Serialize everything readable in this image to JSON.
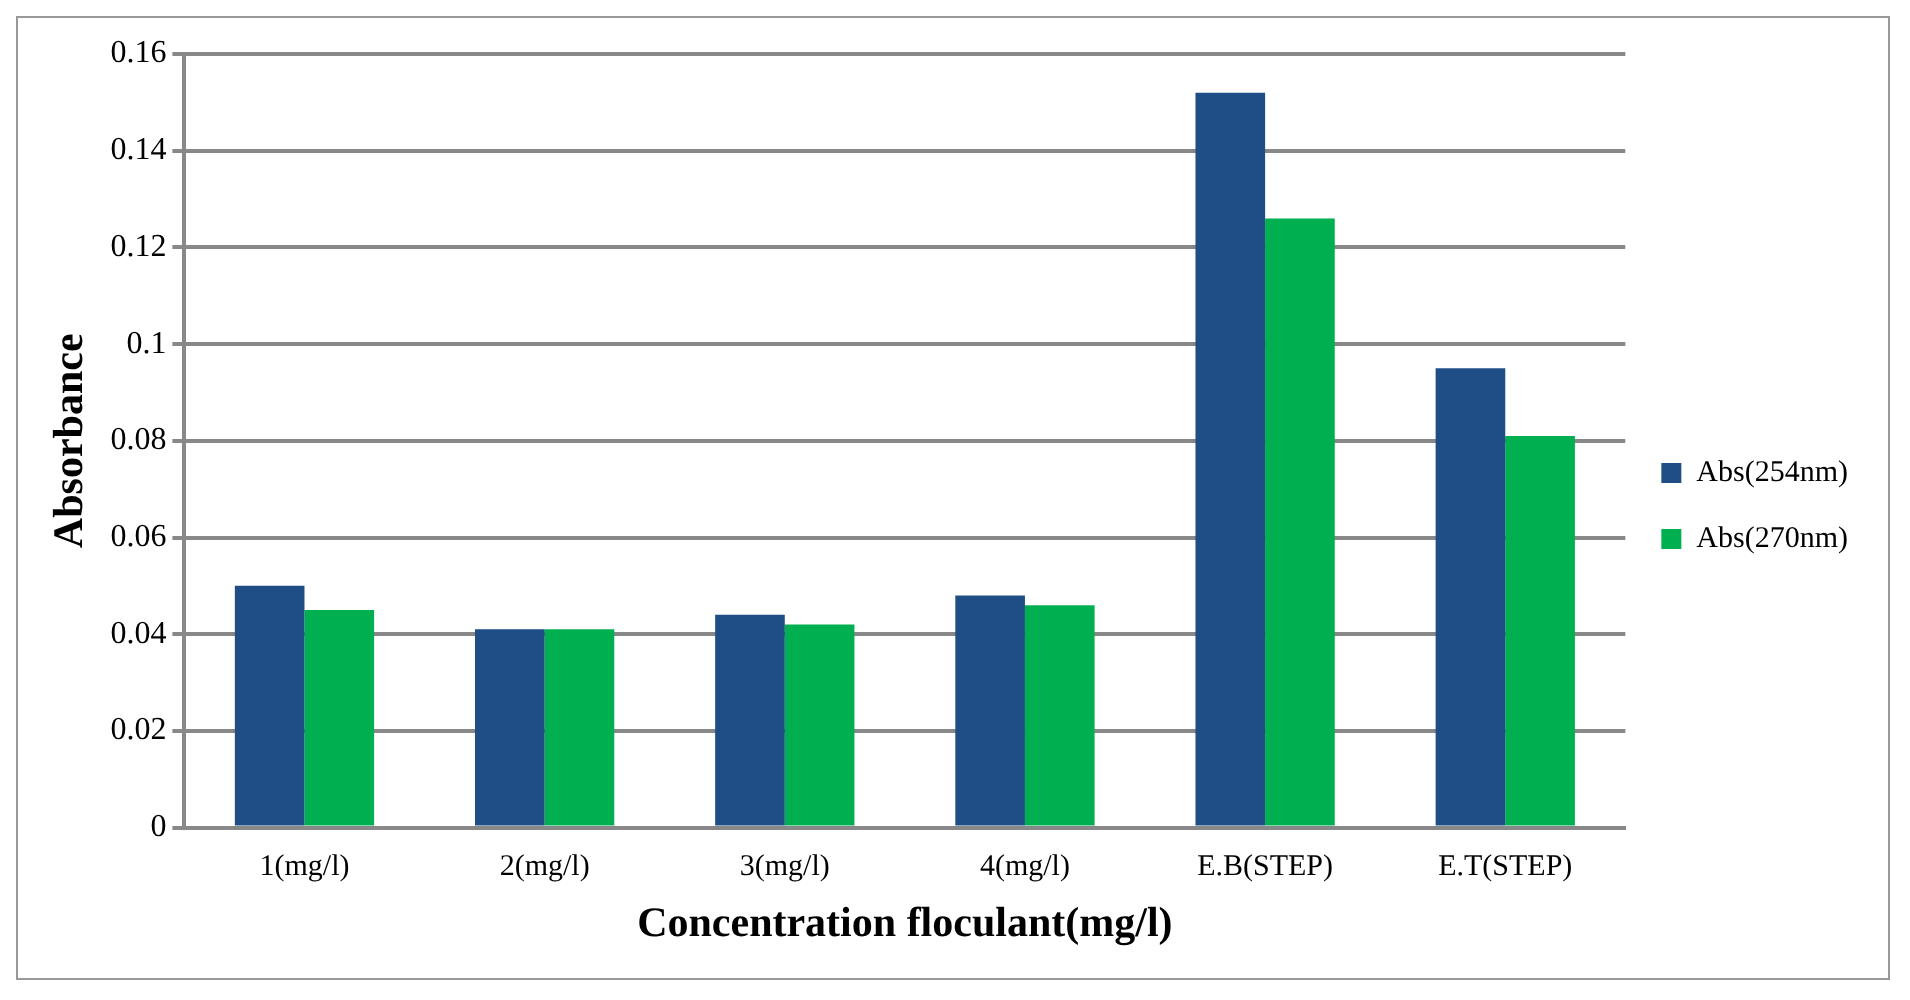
{
  "chart_data": {
    "type": "bar",
    "xlabel": "Concentration floculant(mg/l)",
    "ylabel": "Absorbance",
    "categories": [
      "1(mg/l)",
      "2(mg/l)",
      "3(mg/l)",
      "4(mg/l)",
      "E.B(STEP)",
      "E.T(STEP)"
    ],
    "series": [
      {
        "name": "Abs(254nm)",
        "color": "#1f4e87",
        "values": [
          0.05,
          0.041,
          0.044,
          0.048,
          0.152,
          0.095
        ]
      },
      {
        "name": "Abs(270nm)",
        "color": "#00b050",
        "values": [
          0.045,
          0.041,
          0.042,
          0.046,
          0.126,
          0.081
        ]
      }
    ],
    "ylim": [
      0,
      0.16
    ],
    "yticks": [
      0,
      0.02,
      0.04,
      0.06,
      0.08,
      0.1,
      0.12,
      0.14,
      0.16
    ],
    "grid": "y",
    "legend": "right"
  }
}
